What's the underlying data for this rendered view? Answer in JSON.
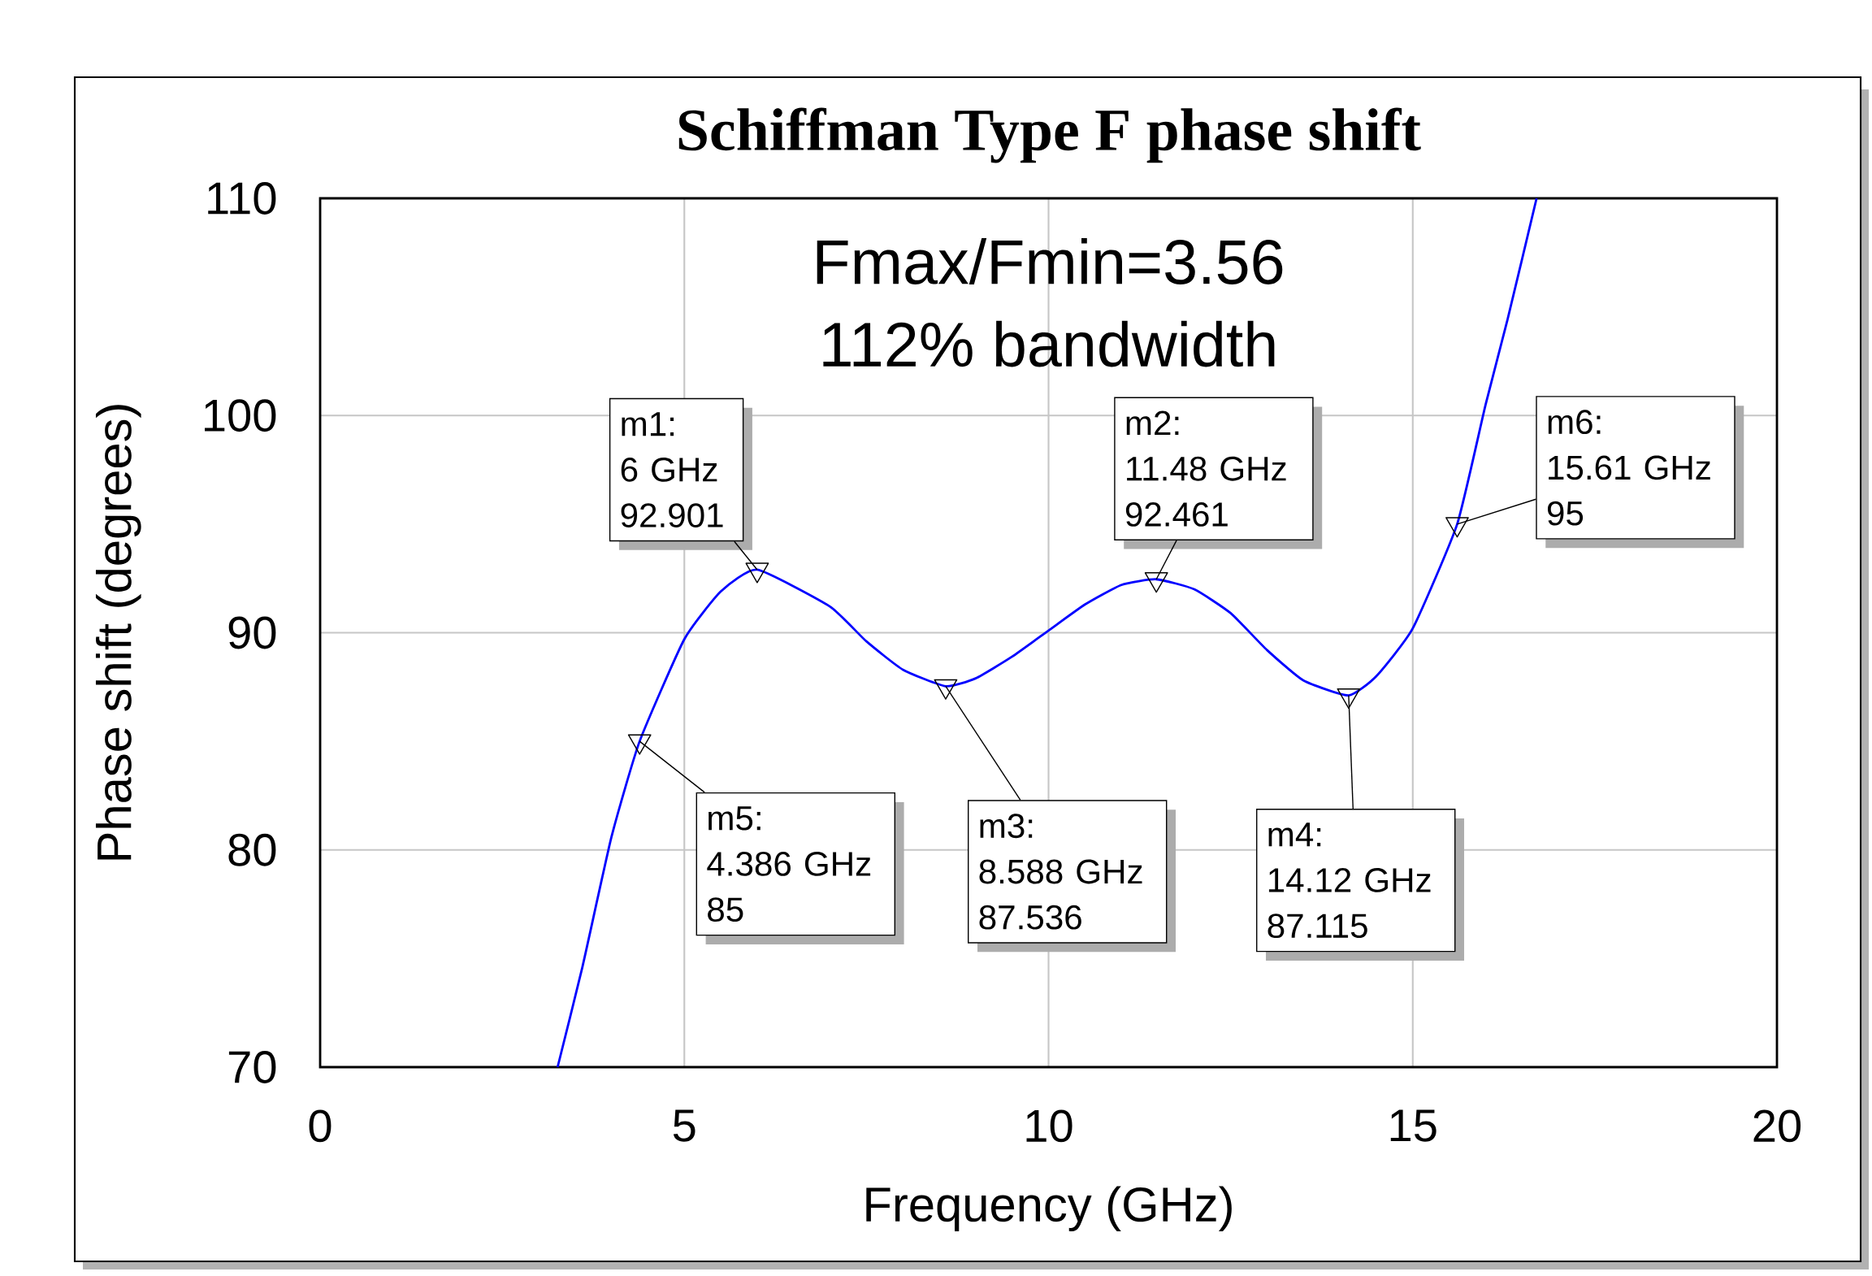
{
  "chart_data": {
    "type": "line",
    "title": "Schiffman Type F phase shift",
    "xlabel": "Frequency (GHz)",
    "ylabel": "Phase shift (degrees)",
    "x": [
      3.26,
      3.6,
      4.0,
      4.386,
      5.0,
      5.5,
      6.0,
      7.0,
      7.5,
      8.0,
      8.588,
      9.0,
      9.5,
      10.0,
      10.5,
      11.0,
      11.48,
      12.0,
      12.5,
      13.0,
      13.5,
      14.12,
      14.5,
      15.0,
      15.61,
      16.0,
      16.3,
      16.7
    ],
    "series": [
      {
        "color": "#0000ff",
        "values": [
          70,
          74.6,
          80.6,
          85,
          89.7,
          91.9,
          92.901,
          91.2,
          89.6,
          88.3,
          87.536,
          87.9,
          88.9,
          90.1,
          91.3,
          92.2,
          92.461,
          92.0,
          90.9,
          89.2,
          87.8,
          87.115,
          88.0,
          90.2,
          95,
          100.5,
          104.4,
          110
        ]
      },
      {
        "type": "scatter",
        "marker": "triangle",
        "color": "#000000",
        "x": [
          6,
          11.48,
          8.588,
          14.12,
          4.386,
          15.61
        ],
        "values": [
          92.901,
          92.461,
          87.536,
          87.115,
          85,
          95
        ]
      }
    ],
    "xlim": [
      0,
      20
    ],
    "ylim": [
      70,
      110
    ],
    "xticks": [
      0,
      5,
      10,
      15,
      20
    ],
    "yticks": [
      70,
      80,
      90,
      100,
      110
    ],
    "grid": true,
    "marker": "none",
    "line_style": "solid",
    "annotations": [
      "Fmax/Fmin=3.56",
      "112% bandwidth",
      {
        "text": "m1:\n6 GHz\n92.901",
        "x": 6,
        "y": 92.901
      },
      {
        "text": "m2:\n11.48 GHz\n92.461",
        "x": 11.48,
        "y": 92.461
      },
      {
        "text": "m3:\n8.588 GHz\n87.536",
        "x": 8.588,
        "y": 87.536
      },
      {
        "text": "m4:\n14.12 GHz\n87.115",
        "x": 14.12,
        "y": 87.115
      },
      {
        "text": "m5:\n4.386 GHz\n85",
        "x": 4.386,
        "y": 85
      },
      {
        "text": "m6:\n15.61 GHz\n95",
        "x": 15.61,
        "y": 95
      }
    ]
  }
}
